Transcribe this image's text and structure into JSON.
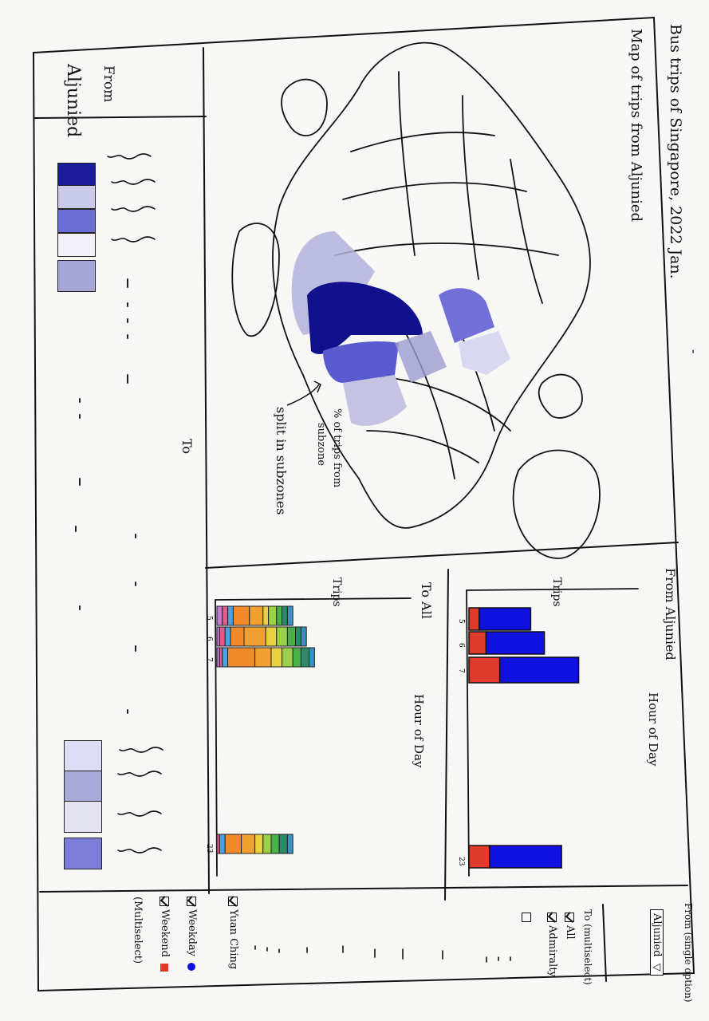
{
  "page": {
    "title": "Bus trips of Singapore, 2022 Jan.",
    "close_mark": "-"
  },
  "map_panel": {
    "title": "Map of trips from Aljunied",
    "annotation_line1": "% of trips from",
    "annotation_line2": "subzone",
    "annotation_line3": "split in subzones"
  },
  "heatmap_panel": {
    "from_label": "From",
    "from_value": "Aljunied",
    "to_label": "To",
    "cells_top": [
      {
        "color": "#1a1a9a"
      },
      {
        "color": "#c9c9e8"
      },
      {
        "color": "#6f6fd8"
      },
      {
        "color": "#f2f2f8"
      },
      {
        "color": "#a6a6d6"
      }
    ],
    "cells_bottom": [
      {
        "color": "#dcdcf2"
      },
      {
        "color": "#a9a9d8"
      },
      {
        "color": "#e3e3f4"
      },
      {
        "color": "#7c7cd9"
      }
    ]
  },
  "chart_from": {
    "title": "From Aljunied",
    "xlabel": "Hour of Day",
    "ylabel": "Trips",
    "tick_labels": [
      "5",
      "6",
      "7",
      "23"
    ]
  },
  "chart_to": {
    "title": "To All",
    "xlabel": "Hour of Day",
    "ylabel": "Trips",
    "tick_labels": [
      "5",
      "6",
      "7",
      "23"
    ]
  },
  "chart_data": [
    {
      "type": "bar",
      "title": "From Aljunied",
      "xlabel": "Hour of Day",
      "ylabel": "Trips",
      "categories": [
        "5",
        "6",
        "7",
        "23"
      ],
      "series": [
        {
          "name": "Weekend",
          "color": "#e03a2a",
          "values": [
            3,
            5,
            9,
            6
          ]
        },
        {
          "name": "Weekday",
          "color": "#1010e0",
          "values": [
            15,
            17,
            23,
            21
          ]
        }
      ]
    },
    {
      "type": "bar",
      "title": "To All",
      "xlabel": "Hour of Day",
      "ylabel": "Trips",
      "categories": [
        "5",
        "6",
        "7",
        "23"
      ],
      "colors": [
        "#c77bd0",
        "#e05a8a",
        "#4aa0e0",
        "#f08a2a",
        "#f0a030",
        "#e8d040",
        "#9ad04a",
        "#4ab04a",
        "#2a8a6a",
        "#3a90c0"
      ],
      "stacks": [
        [
          2,
          2,
          2,
          6,
          5,
          2,
          3,
          2,
          2,
          2
        ],
        [
          1,
          2,
          2,
          5,
          8,
          4,
          4,
          3,
          2,
          2
        ],
        [
          1,
          1,
          2,
          10,
          6,
          4,
          4,
          3,
          3,
          2
        ],
        [
          0,
          1,
          2,
          6,
          5,
          3,
          3,
          3,
          3,
          2
        ]
      ]
    }
  ],
  "controls": {
    "from_label": "From (single option)",
    "from_selected": "Aljunied",
    "to_label": "To (multiselect)",
    "to_options": [
      {
        "label": "All",
        "checked": true
      },
      {
        "label": "Admiralty",
        "checked": true
      },
      {
        "label": "",
        "checked": false
      }
    ],
    "to_last": "Yuan Ching",
    "day_options": [
      {
        "label": "Weekday",
        "checked": true,
        "color": "#1010e0"
      },
      {
        "label": "Weekend",
        "checked": true,
        "color": "#e03a2a"
      }
    ],
    "day_note": "(Multiselect)"
  }
}
